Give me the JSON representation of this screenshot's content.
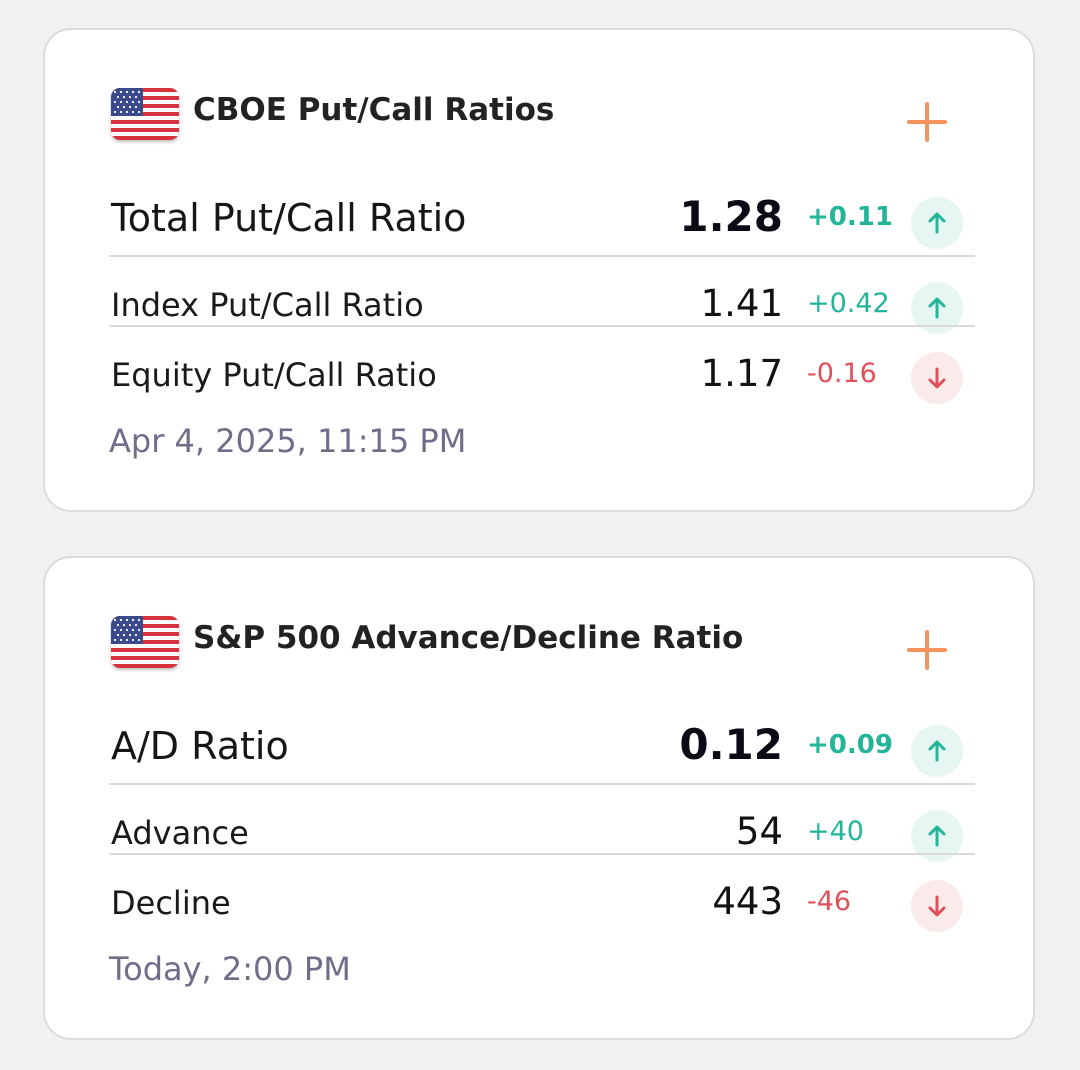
{
  "colors": {
    "positive": "#22b59a",
    "negative": "#e0505a",
    "accent_plus": "#f5945a",
    "timestamp": "#6e6e8a"
  },
  "cards": [
    {
      "title": "CBOE Put/Call Ratios",
      "flag_icon": "us-flag-icon",
      "add_icon": "plus-icon",
      "main": {
        "label": "Total Put/Call Ratio",
        "value": "1.28",
        "change": "+0.11",
        "direction": "up"
      },
      "rows": [
        {
          "label": "Index Put/Call Ratio",
          "value": "1.41",
          "change": "+0.42",
          "direction": "up"
        },
        {
          "label": "Equity Put/Call Ratio",
          "value": "1.17",
          "change": "-0.16",
          "direction": "down"
        }
      ],
      "timestamp": "Apr 4, 2025, 11:15 PM"
    },
    {
      "title": "S&P 500 Advance/Decline Ratio",
      "flag_icon": "us-flag-icon",
      "add_icon": "plus-icon",
      "main": {
        "label": "A/D Ratio",
        "value": "0.12",
        "change": "+0.09",
        "direction": "up"
      },
      "rows": [
        {
          "label": "Advance",
          "value": "54",
          "change": "+40",
          "direction": "up"
        },
        {
          "label": "Decline",
          "value": "443",
          "change": "-46",
          "direction": "down"
        }
      ],
      "timestamp": "Today, 2:00 PM"
    }
  ]
}
